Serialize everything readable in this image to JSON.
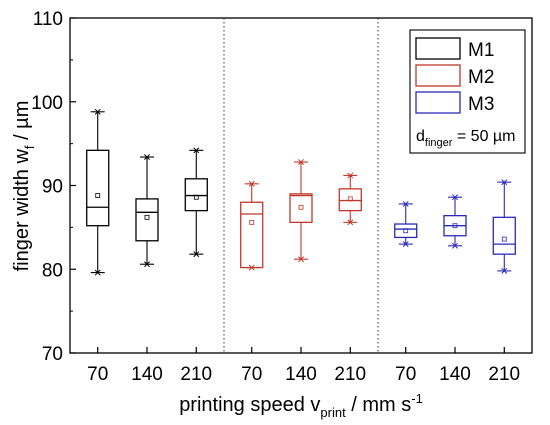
{
  "chart_data": {
    "type": "box",
    "title": "",
    "xlabel": {
      "main": "printing speed v",
      "sub": "print",
      "unit": " / mm s",
      "sup": "-1"
    },
    "ylabel": {
      "main": "finger width w",
      "sub": "f",
      "unit": " / µm"
    },
    "ylim": [
      70,
      110
    ],
    "yticks": [
      "70",
      "80",
      "90",
      "100",
      "110"
    ],
    "legend": {
      "position": "top-right",
      "entries": [
        "M1",
        "M2",
        "M3"
      ],
      "note": {
        "main": "d",
        "sub": "finger",
        "rest": " = 50 µm"
      }
    },
    "groups": [
      {
        "name": "M1",
        "color": "#000000",
        "boxes": [
          {
            "label": "70",
            "whisker_low": 79.6,
            "q1": 85.2,
            "median": 87.4,
            "q3": 94.2,
            "whisker_high": 98.8,
            "mean": 88.8
          },
          {
            "label": "140",
            "whisker_low": 80.6,
            "q1": 83.4,
            "median": 86.8,
            "q3": 88.4,
            "whisker_high": 93.4,
            "mean": 86.2
          },
          {
            "label": "210",
            "whisker_low": 81.8,
            "q1": 87.0,
            "median": 88.8,
            "q3": 90.8,
            "whisker_high": 94.2,
            "mean": 88.6
          }
        ]
      },
      {
        "name": "M2",
        "color": "#c0392b",
        "boxes": [
          {
            "label": "70",
            "whisker_low": 80.2,
            "q1": 80.2,
            "median": 86.6,
            "q3": 88.0,
            "whisker_high": 90.2,
            "mean": 85.6
          },
          {
            "label": "140",
            "whisker_low": 81.2,
            "q1": 85.6,
            "median": 88.8,
            "q3": 89.0,
            "whisker_high": 92.8,
            "mean": 87.4
          },
          {
            "label": "210",
            "whisker_low": 85.6,
            "q1": 87.0,
            "median": 88.2,
            "q3": 89.6,
            "whisker_high": 91.2,
            "mean": 88.4
          }
        ]
      },
      {
        "name": "M3",
        "color": "#2a2ab8",
        "boxes": [
          {
            "label": "70",
            "whisker_low": 83.0,
            "q1": 83.8,
            "median": 84.8,
            "q3": 85.4,
            "whisker_high": 87.8,
            "mean": 84.6
          },
          {
            "label": "140",
            "whisker_low": 82.8,
            "q1": 84.0,
            "median": 85.2,
            "q3": 86.4,
            "whisker_high": 88.6,
            "mean": 85.2
          },
          {
            "label": "210",
            "whisker_low": 79.8,
            "q1": 81.8,
            "median": 83.0,
            "q3": 86.2,
            "whisker_high": 90.4,
            "mean": 83.6
          }
        ]
      }
    ]
  }
}
